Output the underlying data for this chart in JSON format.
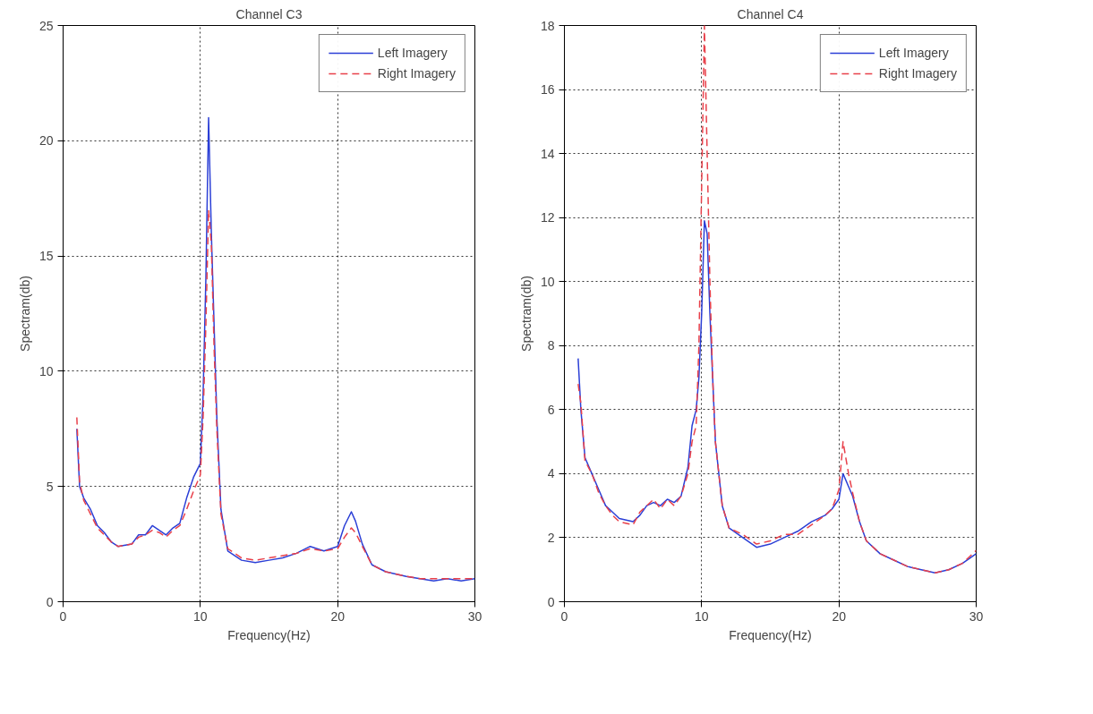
{
  "chart_data": [
    {
      "type": "line",
      "title": "Channel C3",
      "xlabel": "Frequency(Hz)",
      "ylabel": "Spectram(db)",
      "xlim": [
        0,
        30
      ],
      "xticks": [
        0,
        10,
        20,
        30
      ],
      "ylim": [
        0,
        25
      ],
      "yticks": [
        0,
        5,
        10,
        15,
        20,
        25
      ],
      "grid": true,
      "legend": "top right",
      "series": [
        {
          "name": "Left Imagery",
          "color": "#2b3fd6",
          "line_style": "solid",
          "x": [
            1,
            1.2,
            1.5,
            2,
            2.5,
            3,
            3.5,
            4,
            5,
            5.5,
            6,
            6.5,
            7,
            7.5,
            8,
            8.5,
            9,
            9.5,
            10,
            10.2,
            10.4,
            10.6,
            10.8,
            11,
            11.2,
            11.5,
            12,
            13,
            14,
            15,
            16,
            17,
            18,
            19,
            20,
            20.5,
            21,
            21.3,
            21.8,
            22.5,
            23.5,
            25,
            26,
            27,
            28,
            29,
            30
          ],
          "values": [
            7.5,
            5,
            4.5,
            4,
            3.3,
            3,
            2.6,
            2.4,
            2.5,
            2.9,
            2.9,
            3.3,
            3.1,
            2.9,
            3.2,
            3.4,
            4.5,
            5.4,
            6,
            9,
            14,
            21,
            16,
            12,
            8,
            4,
            2.2,
            1.8,
            1.7,
            1.8,
            1.9,
            2.1,
            2.4,
            2.2,
            2.4,
            3.3,
            3.9,
            3.5,
            2.5,
            1.6,
            1.3,
            1.1,
            1.0,
            0.9,
            1.0,
            0.9,
            1.0
          ]
        },
        {
          "name": "Right Imagery",
          "color": "#e8404a",
          "line_style": "dashed",
          "x": [
            1,
            1.2,
            1.5,
            2,
            2.5,
            3,
            3.5,
            4,
            5,
            5.5,
            6,
            6.5,
            7,
            7.5,
            8,
            8.5,
            9,
            9.5,
            10,
            10.2,
            10.4,
            10.6,
            10.8,
            11,
            11.2,
            11.5,
            12,
            13,
            14,
            15,
            16,
            17,
            18,
            19,
            20,
            20.5,
            21,
            21.3,
            21.8,
            22.5,
            23.5,
            25,
            26,
            27,
            28,
            29,
            30
          ],
          "values": [
            8,
            5.2,
            4.4,
            3.8,
            3.2,
            2.9,
            2.6,
            2.4,
            2.5,
            2.8,
            2.9,
            3.1,
            3.0,
            2.8,
            3.1,
            3.3,
            4.0,
            4.8,
            5.5,
            8,
            12,
            17,
            15.5,
            11,
            7.5,
            3.8,
            2.3,
            1.9,
            1.8,
            1.9,
            2.0,
            2.1,
            2.3,
            2.2,
            2.3,
            2.8,
            3.2,
            3.0,
            2.4,
            1.6,
            1.3,
            1.1,
            1.0,
            1.0,
            1.0,
            1.0,
            1.0
          ]
        }
      ]
    },
    {
      "type": "line",
      "title": "Channel C4",
      "xlabel": "Frequency(Hz)",
      "ylabel": "Spectram(db)",
      "xlim": [
        0,
        30
      ],
      "xticks": [
        0,
        10,
        20,
        30
      ],
      "ylim": [
        0,
        18
      ],
      "yticks": [
        0,
        2,
        4,
        6,
        8,
        10,
        12,
        14,
        16,
        18
      ],
      "grid": true,
      "legend": "top right",
      "series": [
        {
          "name": "Left Imagery",
          "color": "#2b3fd6",
          "line_style": "solid",
          "x": [
            1,
            1.2,
            1.5,
            2,
            2.5,
            3,
            3.5,
            4,
            5,
            5.5,
            6,
            6.5,
            7,
            7.5,
            8,
            8.5,
            9,
            9.3,
            9.6,
            9.8,
            10,
            10.2,
            10.4,
            10.6,
            10.8,
            11,
            11.5,
            12,
            13,
            14,
            15,
            16,
            17,
            18,
            19,
            19.5,
            20,
            20.3,
            20.7,
            21,
            21.5,
            22,
            23,
            24,
            25,
            26,
            27,
            28,
            29,
            30
          ],
          "values": [
            7.6,
            6,
            4.5,
            4,
            3.5,
            3,
            2.8,
            2.6,
            2.5,
            2.7,
            3,
            3.1,
            3,
            3.2,
            3.1,
            3.3,
            4.2,
            5.5,
            6,
            7,
            9,
            11.9,
            11.5,
            9,
            7,
            5,
            3,
            2.3,
            2.0,
            1.7,
            1.8,
            2.0,
            2.2,
            2.5,
            2.7,
            2.9,
            3.2,
            4.0,
            3.6,
            3.3,
            2.5,
            1.9,
            1.5,
            1.3,
            1.1,
            1.0,
            0.9,
            1.0,
            1.2,
            1.5
          ]
        },
        {
          "name": "Right Imagery",
          "color": "#e8404a",
          "line_style": "dashed",
          "x": [
            1,
            1.2,
            1.5,
            2,
            2.5,
            3,
            3.5,
            4,
            5,
            5.5,
            6,
            6.5,
            7,
            7.5,
            8,
            8.5,
            9,
            9.3,
            9.6,
            9.8,
            10,
            10.2,
            10.4,
            10.6,
            10.8,
            11,
            11.5,
            12,
            13,
            14,
            15,
            16,
            17,
            18,
            19,
            19.5,
            20,
            20.3,
            20.7,
            21,
            21.5,
            22,
            23,
            24,
            25,
            26,
            27,
            28,
            29,
            30
          ],
          "values": [
            6.8,
            6.2,
            4.4,
            4,
            3.4,
            3,
            2.7,
            2.5,
            2.4,
            2.8,
            3,
            3.2,
            2.9,
            3.2,
            3.0,
            3.3,
            4.0,
            5.0,
            5.5,
            8,
            13,
            18,
            14,
            10,
            7,
            5,
            3,
            2.3,
            2.1,
            1.8,
            1.9,
            2.1,
            2.1,
            2.4,
            2.7,
            2.9,
            3.5,
            5.0,
            4.0,
            3.4,
            2.5,
            1.9,
            1.5,
            1.3,
            1.1,
            1.0,
            0.9,
            1.0,
            1.2,
            1.6
          ]
        }
      ]
    }
  ]
}
